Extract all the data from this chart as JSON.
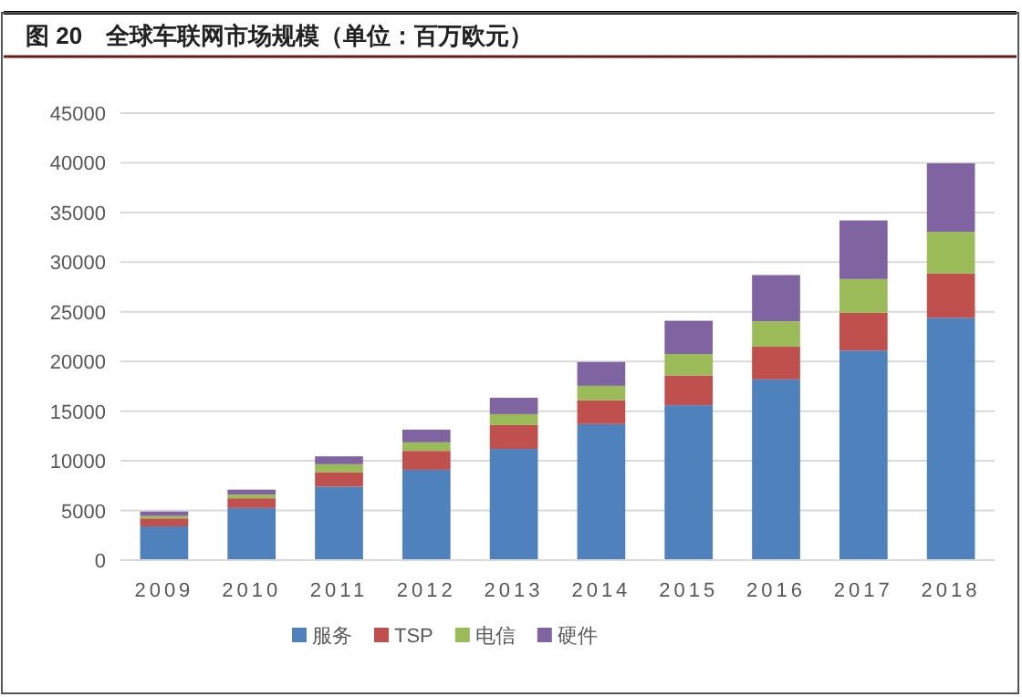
{
  "chart_data": {
    "type": "bar",
    "title": "图 20　全球车联网市场规模（单位：百万欧元）",
    "categories": [
      "2009",
      "2010",
      "2011",
      "2012",
      "2013",
      "2014",
      "2015",
      "2016",
      "2017",
      "2018"
    ],
    "stacked": true,
    "series": [
      {
        "name": "服务",
        "color": "#4f81bd",
        "values": [
          3400,
          5250,
          7400,
          9100,
          11200,
          13700,
          15600,
          18200,
          21100,
          24400
        ]
      },
      {
        "name": "TSP",
        "color": "#c0504d",
        "values": [
          800,
          980,
          1460,
          1900,
          2400,
          2400,
          3000,
          3300,
          3800,
          4450
        ]
      },
      {
        "name": "电信",
        "color": "#9bbb59",
        "values": [
          250,
          370,
          800,
          860,
          1100,
          1450,
          2150,
          2550,
          3400,
          4200
        ]
      },
      {
        "name": "硬件",
        "color": "#8064a2",
        "values": [
          450,
          500,
          790,
          1280,
          1650,
          2400,
          3350,
          4650,
          5900,
          6900
        ]
      }
    ],
    "ylim": [
      0,
      45000
    ],
    "yticks": [
      0,
      5000,
      10000,
      15000,
      20000,
      25000,
      30000,
      35000,
      40000,
      45000
    ],
    "grid": "y",
    "legend": "bottom"
  }
}
